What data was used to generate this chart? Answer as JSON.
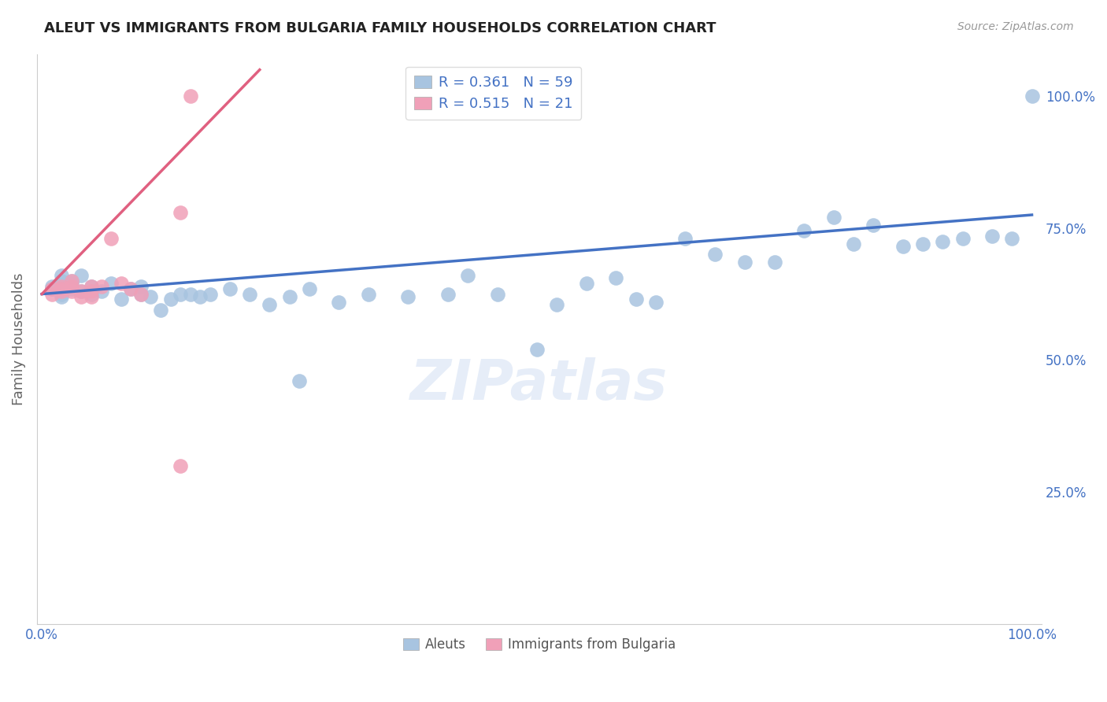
{
  "title": "ALEUT VS IMMIGRANTS FROM BULGARIA FAMILY HOUSEHOLDS CORRELATION CHART",
  "source": "Source: ZipAtlas.com",
  "ylabel": "Family Households",
  "legend_labels": [
    "Aleuts",
    "Immigrants from Bulgaria"
  ],
  "r_aleut": 0.361,
  "n_aleut": 59,
  "r_bulgaria": 0.515,
  "n_bulgaria": 21,
  "aleut_color": "#a8c4e0",
  "bulgaria_color": "#f0a0b8",
  "trend_aleut_color": "#4472c4",
  "trend_bulgaria_color": "#e06080",
  "title_color": "#222222",
  "axis_label_color": "#666666",
  "tick_color": "#4472c4",
  "grid_color": "#cccccc",
  "background_color": "#ffffff",
  "legend_text_color": "#4472c4",
  "source_color": "#999999",
  "xmin": 0.0,
  "xmax": 1.0,
  "ymin": 0.0,
  "ymax": 1.08,
  "aleut_x": [
    0.01,
    0.01,
    0.02,
    0.02,
    0.02,
    0.02,
    0.03,
    0.03,
    0.03,
    0.04,
    0.04,
    0.05,
    0.05,
    0.06,
    0.07,
    0.08,
    0.09,
    0.1,
    0.1,
    0.11,
    0.12,
    0.13,
    0.14,
    0.15,
    0.16,
    0.17,
    0.19,
    0.21,
    0.23,
    0.25,
    0.27,
    0.3,
    0.33,
    0.37,
    0.41,
    0.43,
    0.46,
    0.5,
    0.52,
    0.55,
    0.58,
    0.6,
    0.62,
    0.65,
    0.68,
    0.71,
    0.74,
    0.77,
    0.8,
    0.82,
    0.84,
    0.87,
    0.89,
    0.91,
    0.93,
    0.96,
    0.98,
    1.0,
    0.26
  ],
  "aleut_y": [
    0.635,
    0.64,
    0.66,
    0.62,
    0.65,
    0.625,
    0.635,
    0.645,
    0.65,
    0.63,
    0.66,
    0.625,
    0.64,
    0.63,
    0.645,
    0.615,
    0.635,
    0.625,
    0.64,
    0.62,
    0.595,
    0.615,
    0.625,
    0.625,
    0.62,
    0.625,
    0.635,
    0.625,
    0.605,
    0.62,
    0.635,
    0.61,
    0.625,
    0.62,
    0.625,
    0.66,
    0.625,
    0.52,
    0.605,
    0.645,
    0.655,
    0.615,
    0.61,
    0.73,
    0.7,
    0.685,
    0.685,
    0.745,
    0.77,
    0.72,
    0.755,
    0.715,
    0.72,
    0.725,
    0.73,
    0.735,
    0.73,
    1.0,
    0.46
  ],
  "bulgaria_x": [
    0.01,
    0.01,
    0.02,
    0.02,
    0.02,
    0.03,
    0.03,
    0.03,
    0.04,
    0.04,
    0.05,
    0.05,
    0.05,
    0.06,
    0.07,
    0.08,
    0.09,
    0.1,
    0.14,
    0.15,
    0.14
  ],
  "bulgaria_y": [
    0.635,
    0.625,
    0.64,
    0.635,
    0.63,
    0.65,
    0.64,
    0.63,
    0.62,
    0.63,
    0.64,
    0.63,
    0.62,
    0.64,
    0.73,
    0.645,
    0.635,
    0.625,
    0.3,
    1.0,
    0.78
  ],
  "trend_aleut_x0": 0.0,
  "trend_aleut_y0": 0.625,
  "trend_aleut_x1": 1.0,
  "trend_aleut_y1": 0.775,
  "trend_bulgaria_x0": 0.0,
  "trend_bulgaria_y0": 0.625,
  "trend_bulgaria_x1": 0.22,
  "trend_bulgaria_y1": 1.05
}
